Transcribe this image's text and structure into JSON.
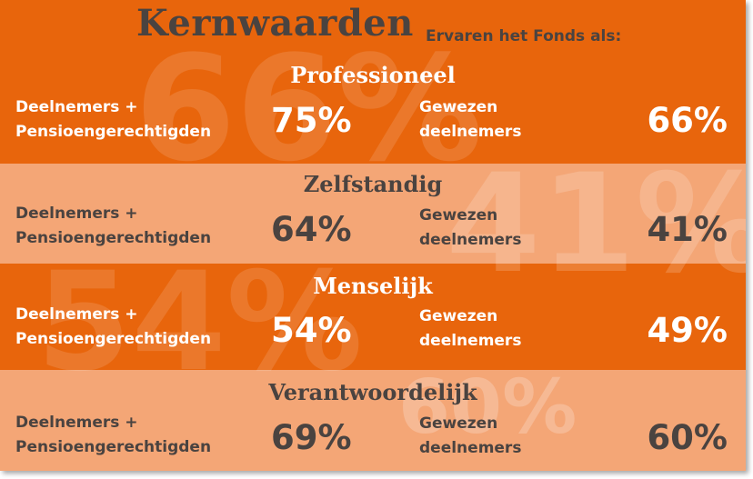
{
  "header": {
    "title": "Kernwaarden",
    "subtitle": "Ervaren het Fonds als:"
  },
  "colors": {
    "dark_band": "#e8650c",
    "light_band": "#f4a676",
    "dark_text": "#4a4340",
    "light_text": "#ffffff"
  },
  "sections": [
    {
      "title": "Professioneel",
      "left_label": [
        "Deelnemers +",
        "Pensioengerechtigden"
      ],
      "left_value": "75%",
      "right_label": [
        "Gewezen",
        "deelnemers"
      ],
      "right_value": "66%",
      "watermark": "66%"
    },
    {
      "title": "Zelfstandig",
      "left_label": [
        "Deelnemers +",
        "Pensioengerechtigden"
      ],
      "left_value": "64%",
      "right_label": [
        "Gewezen",
        "deelnemers"
      ],
      "right_value": "41%",
      "watermark": "41%"
    },
    {
      "title": "Menselijk",
      "left_label": [
        "Deelnemers +",
        "Pensioengerechtigden"
      ],
      "left_value": "54%",
      "right_label": [
        "Gewezen",
        "deelnemers"
      ],
      "right_value": "49%",
      "watermark": "54%"
    },
    {
      "title": "Verantwoordelijk",
      "left_label": [
        "Deelnemers +",
        "Pensioengerechtigden"
      ],
      "left_value": "69%",
      "right_label": [
        "Gewezen",
        "deelnemers"
      ],
      "right_value": "60%",
      "watermark": "60%"
    }
  ]
}
